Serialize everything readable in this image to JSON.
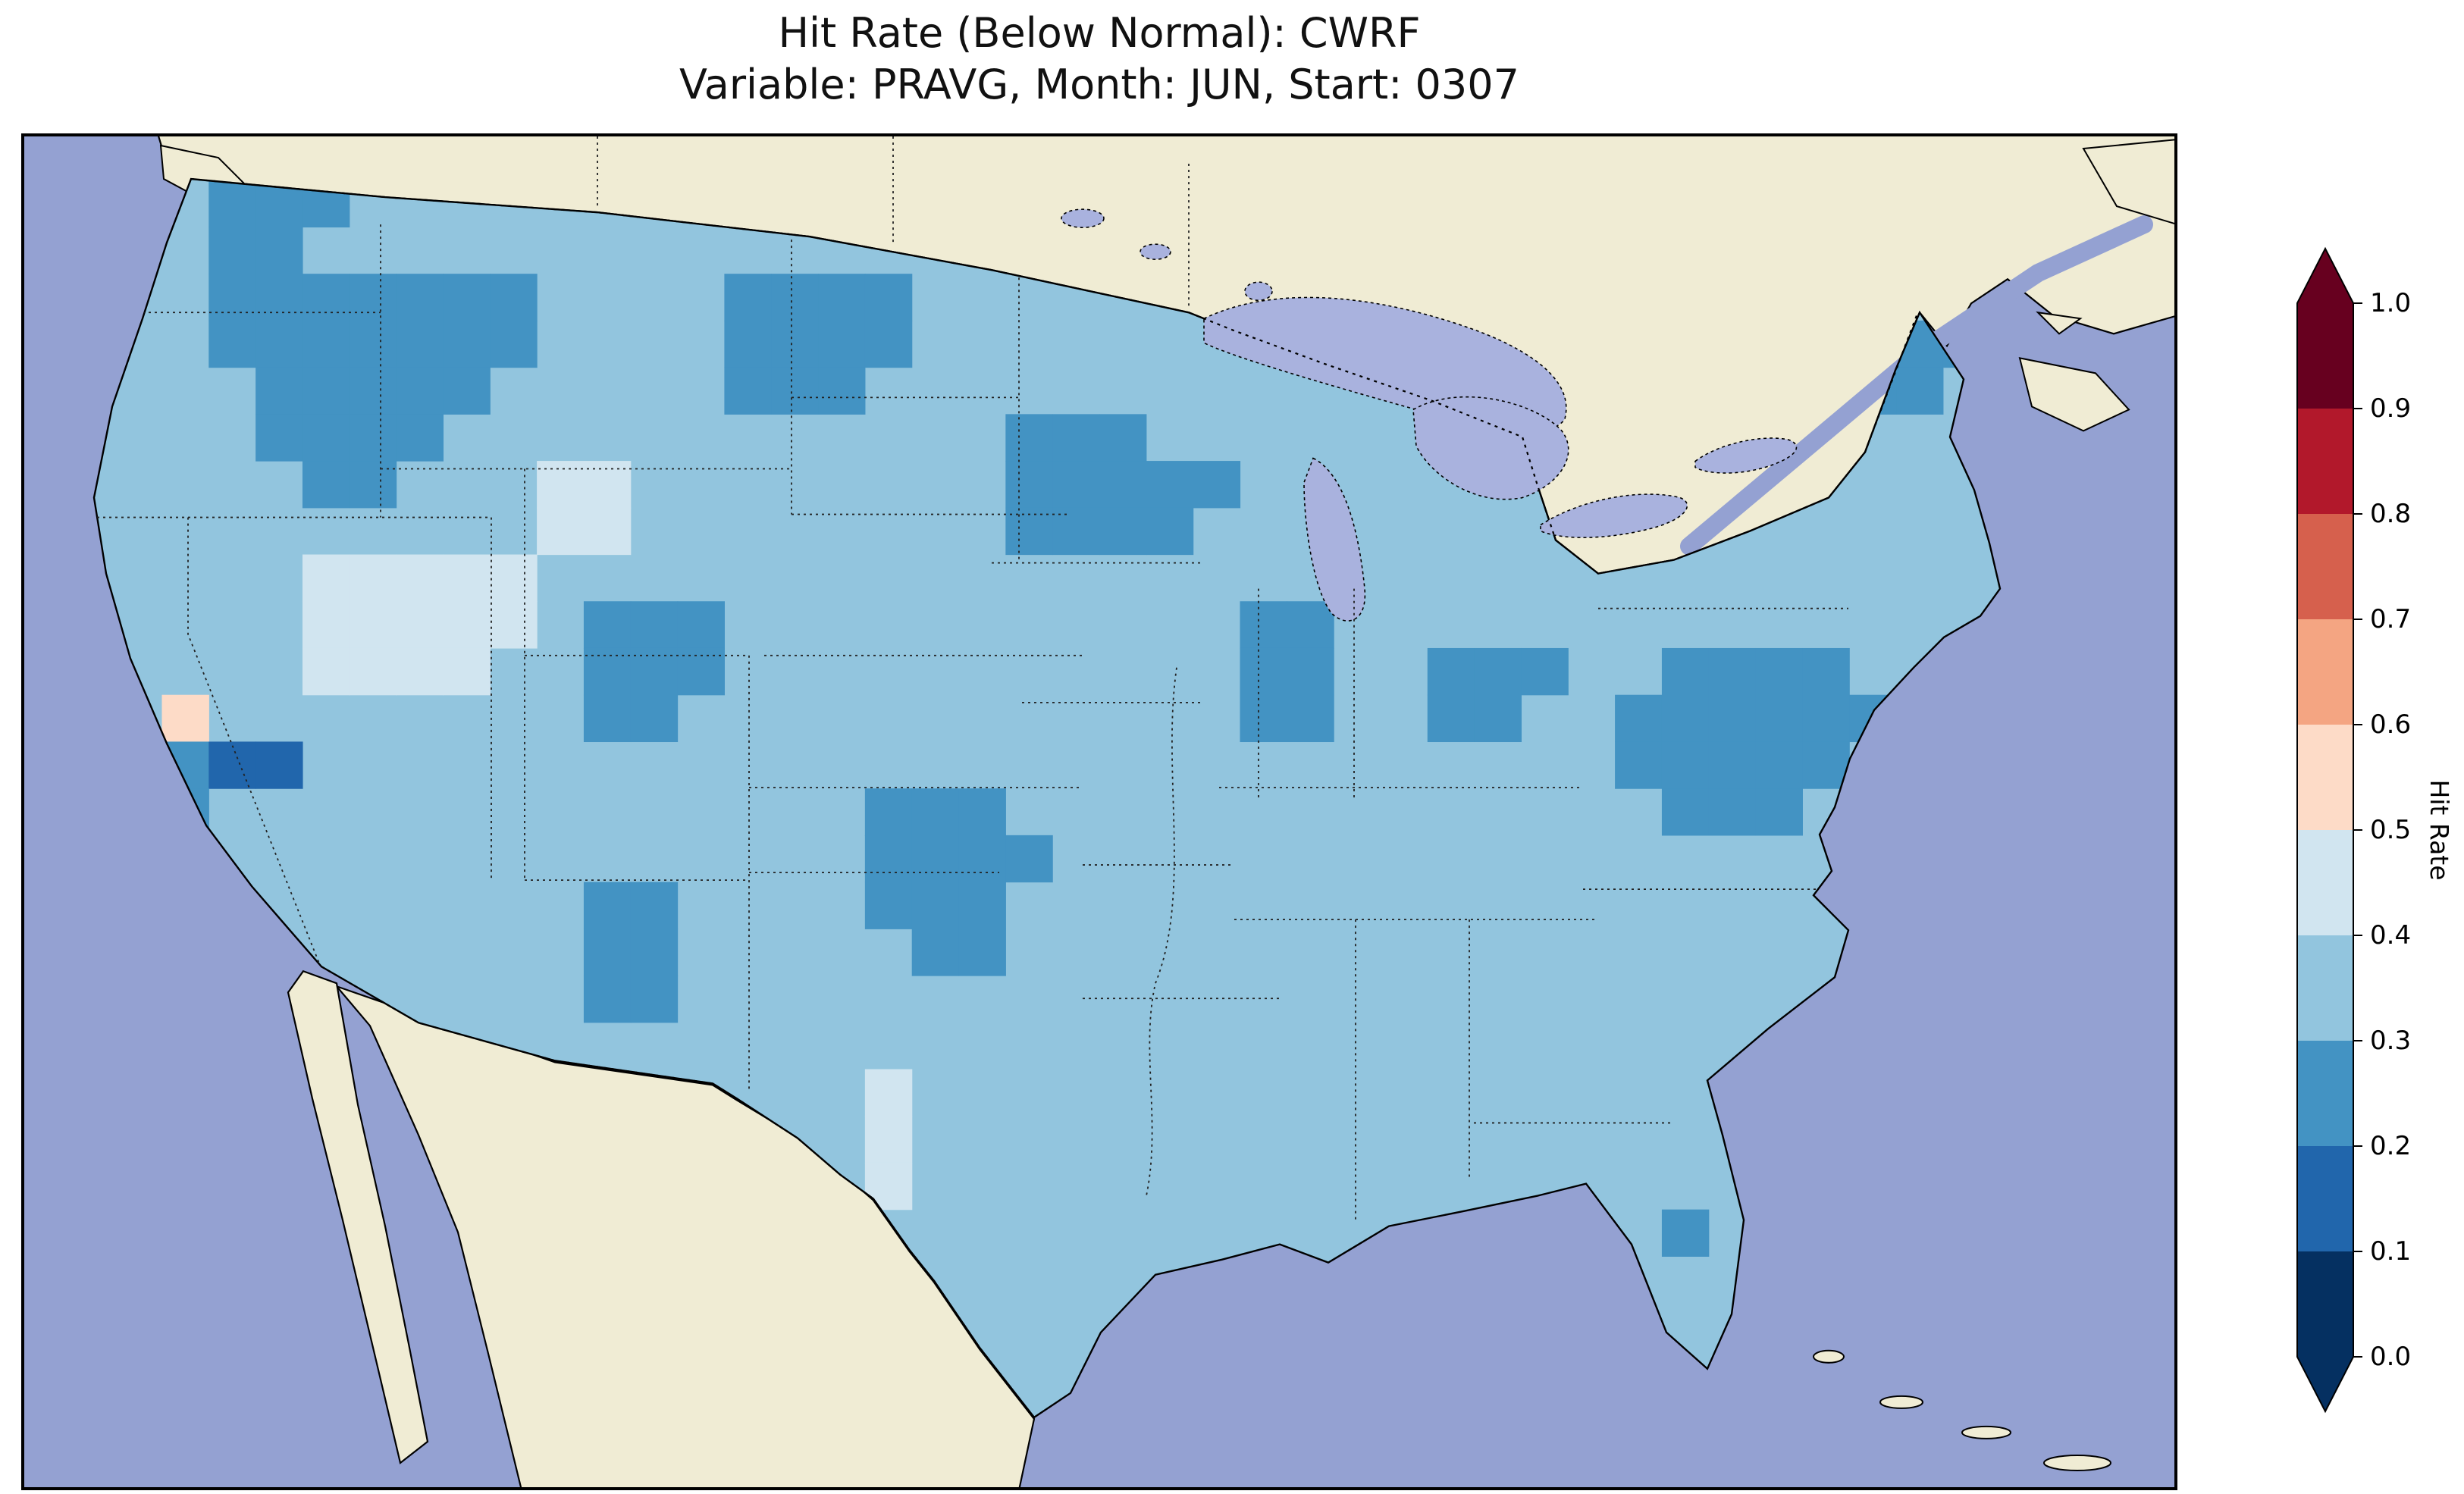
{
  "figure": {
    "title_line1": "Hit Rate (Below Normal): CWRF",
    "title_line2": "Variable: PRAVG, Month: JUN, Start: 0307"
  },
  "colorbar": {
    "label": "Hit Rate",
    "ticks": [
      "0.0",
      "0.1",
      "0.2",
      "0.3",
      "0.4",
      "0.5",
      "0.6",
      "0.7",
      "0.8",
      "0.9",
      "1.0"
    ],
    "bins": [
      {
        "from": 0.0,
        "to": 0.1,
        "color": "#053061"
      },
      {
        "from": 0.1,
        "to": 0.2,
        "color": "#2166ac"
      },
      {
        "from": 0.2,
        "to": 0.3,
        "color": "#4393c3"
      },
      {
        "from": 0.3,
        "to": 0.4,
        "color": "#92c5de"
      },
      {
        "from": 0.4,
        "to": 0.5,
        "color": "#d1e5f0"
      },
      {
        "from": 0.5,
        "to": 0.6,
        "color": "#fddbc7"
      },
      {
        "from": 0.6,
        "to": 0.7,
        "color": "#f4a582"
      },
      {
        "from": 0.7,
        "to": 0.8,
        "color": "#d6604d"
      },
      {
        "from": 0.8,
        "to": 0.9,
        "color": "#b2182b"
      },
      {
        "from": 0.9,
        "to": 1.0,
        "color": "#67001f"
      }
    ],
    "extend": "both"
  },
  "map": {
    "ocean_color": "#94a1d2",
    "land_color": "#f0ecd4",
    "lake_color": "#a9b2de",
    "base_color": "#92c5de",
    "palette": {
      "2": "#2166ac",
      "3": "#4393c3",
      "4": "#92c5de",
      "5": "#d1e5f0",
      "6": "#fddbc7"
    },
    "grid_cols": 46,
    "grid_rows": 29,
    "grid": [
      "..............................................",
      "....333.......................................",
      "....33........................................",
      "....3333333....3333...........................",
      "....3333333....3333....................333....",
      ".....33333.....333.....................33.....",
      ".....3333............333......................",
      "......33...55........33333....................",
      "...........55........3333.....................",
      "......55555...................................",
      "......55555.333...........33..................",
      "......5555..333...........33..333..3333.......",
      "...6........33............33..33..333333......",
      "...322............................33333.......",
      "...3..............333..............333........",
      "..................3333........................",
      "............33....333.........................",
      "............33.....33.........................",
      "............33................................",
      "..............................................",
      "..................5...........................",
      "..............3...5...........................",
      "..................5...........................",
      "...................................3..........",
      "..............................................",
      "..............................................",
      "..............................................",
      "..............................................",
      ".............................................."
    ]
  },
  "chart_data": {
    "type": "heatmap",
    "title": "Hit Rate (Below Normal): CWRF",
    "subtitle": "Variable: PRAVG, Month: JUN, Start: 0307",
    "region": "Contiguous United States (Lambert-style map, coarse gridded cells)",
    "colorbar_label": "Hit Rate",
    "colorbar_ticks": [
      0.0,
      0.1,
      0.2,
      0.3,
      0.4,
      0.5,
      0.6,
      0.7,
      0.8,
      0.9,
      1.0
    ],
    "value_range": [
      0.0,
      1.0
    ],
    "colormap": "RdBu reversed, 10 discrete bins, extended arrows both ends",
    "dominant_value_bin": "0.3-0.4",
    "grid_legend": {
      "2": "0.1-0.2",
      "3": "0.2-0.3",
      "base": "0.3-0.4",
      "5": "0.4-0.5",
      "6": "0.5-0.6"
    },
    "low_hit_rate_regions_0.2_0.3": [
      "Pacific Northwest / northern Rockies",
      "North Dakota",
      "Minnesota / upper Midwest",
      "southern Wisconsin",
      "Maine",
      "Virginia and Chesapeake region",
      "Indiana-Ohio patch",
      "Kentucky-Tennessee patch",
      "Missouri-Kansas Ozarks patch",
      "southern Colorado / northern New Mexico",
      "scattered California coast cells",
      "one Florida cell"
    ],
    "high_hit_rate_regions_0.4_0.6": [
      "Nevada / Great Basin",
      "southwestern Wyoming",
      "one 0.5-0.6 cell in central California",
      "west Texas light cells"
    ],
    "lowest_patch_0.1_0.2": "southern California / southern Nevada small patch"
  }
}
